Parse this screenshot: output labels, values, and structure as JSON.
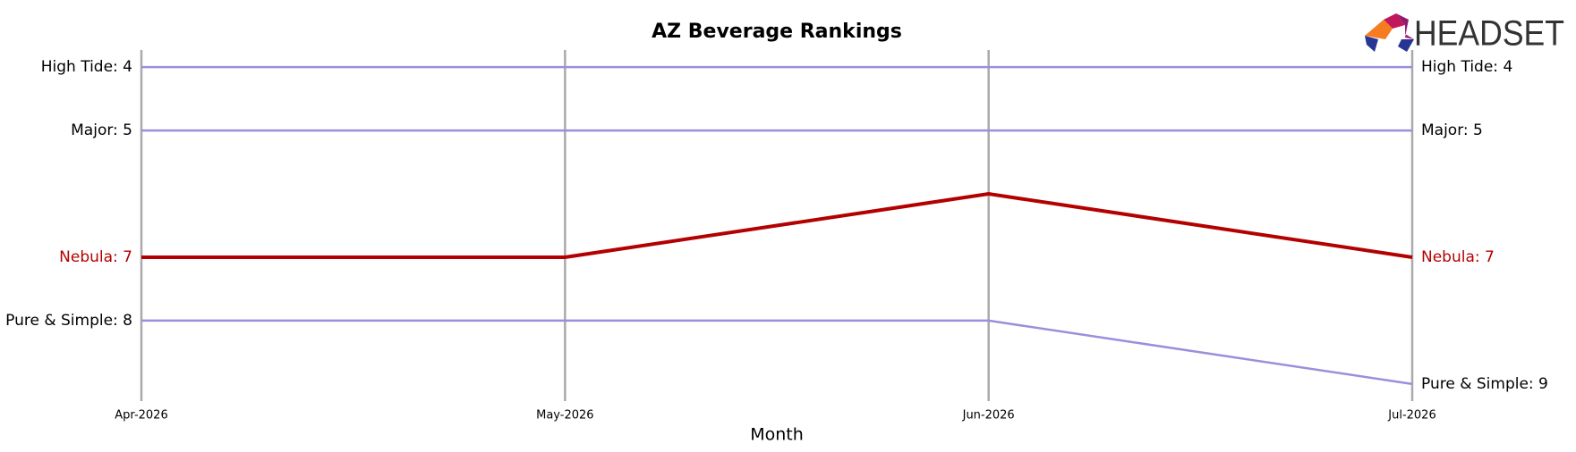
{
  "chart_data": {
    "type": "bump",
    "title": "AZ Beverage Rankings",
    "logo": "HEADSET",
    "x_label": "Month",
    "categories": [
      "Apr-2026",
      "May-2026",
      "Jun-2026",
      "Jul-2026"
    ],
    "ylim": [
      9.27,
      3.73
    ],
    "series": [
      {
        "name": "High Tide",
        "color": "#9b8fdc",
        "highlight": false,
        "values": [
          4,
          4,
          4,
          4
        ],
        "value_labels": [
          "High Tide: 4",
          null,
          null,
          "High Tide: 4"
        ]
      },
      {
        "name": "Major",
        "color": "#9b8fdc",
        "highlight": false,
        "values": [
          5,
          5,
          5,
          5
        ],
        "value_labels": [
          "Major: 5",
          null,
          null,
          "Major: 5"
        ]
      },
      {
        "name": "Nebula",
        "color": "#b30000",
        "highlight": true,
        "values": [
          7,
          7,
          6,
          7
        ],
        "value_labels": [
          "Nebula: 7",
          null,
          null,
          "Nebula: 7"
        ]
      },
      {
        "name": "Pure & Simple",
        "color": "#9b8fdc",
        "highlight": false,
        "values": [
          8,
          8,
          8,
          9
        ],
        "value_labels": [
          "Pure & Simple: 8",
          null,
          null,
          "Pure & Simple: 9"
        ]
      }
    ]
  }
}
